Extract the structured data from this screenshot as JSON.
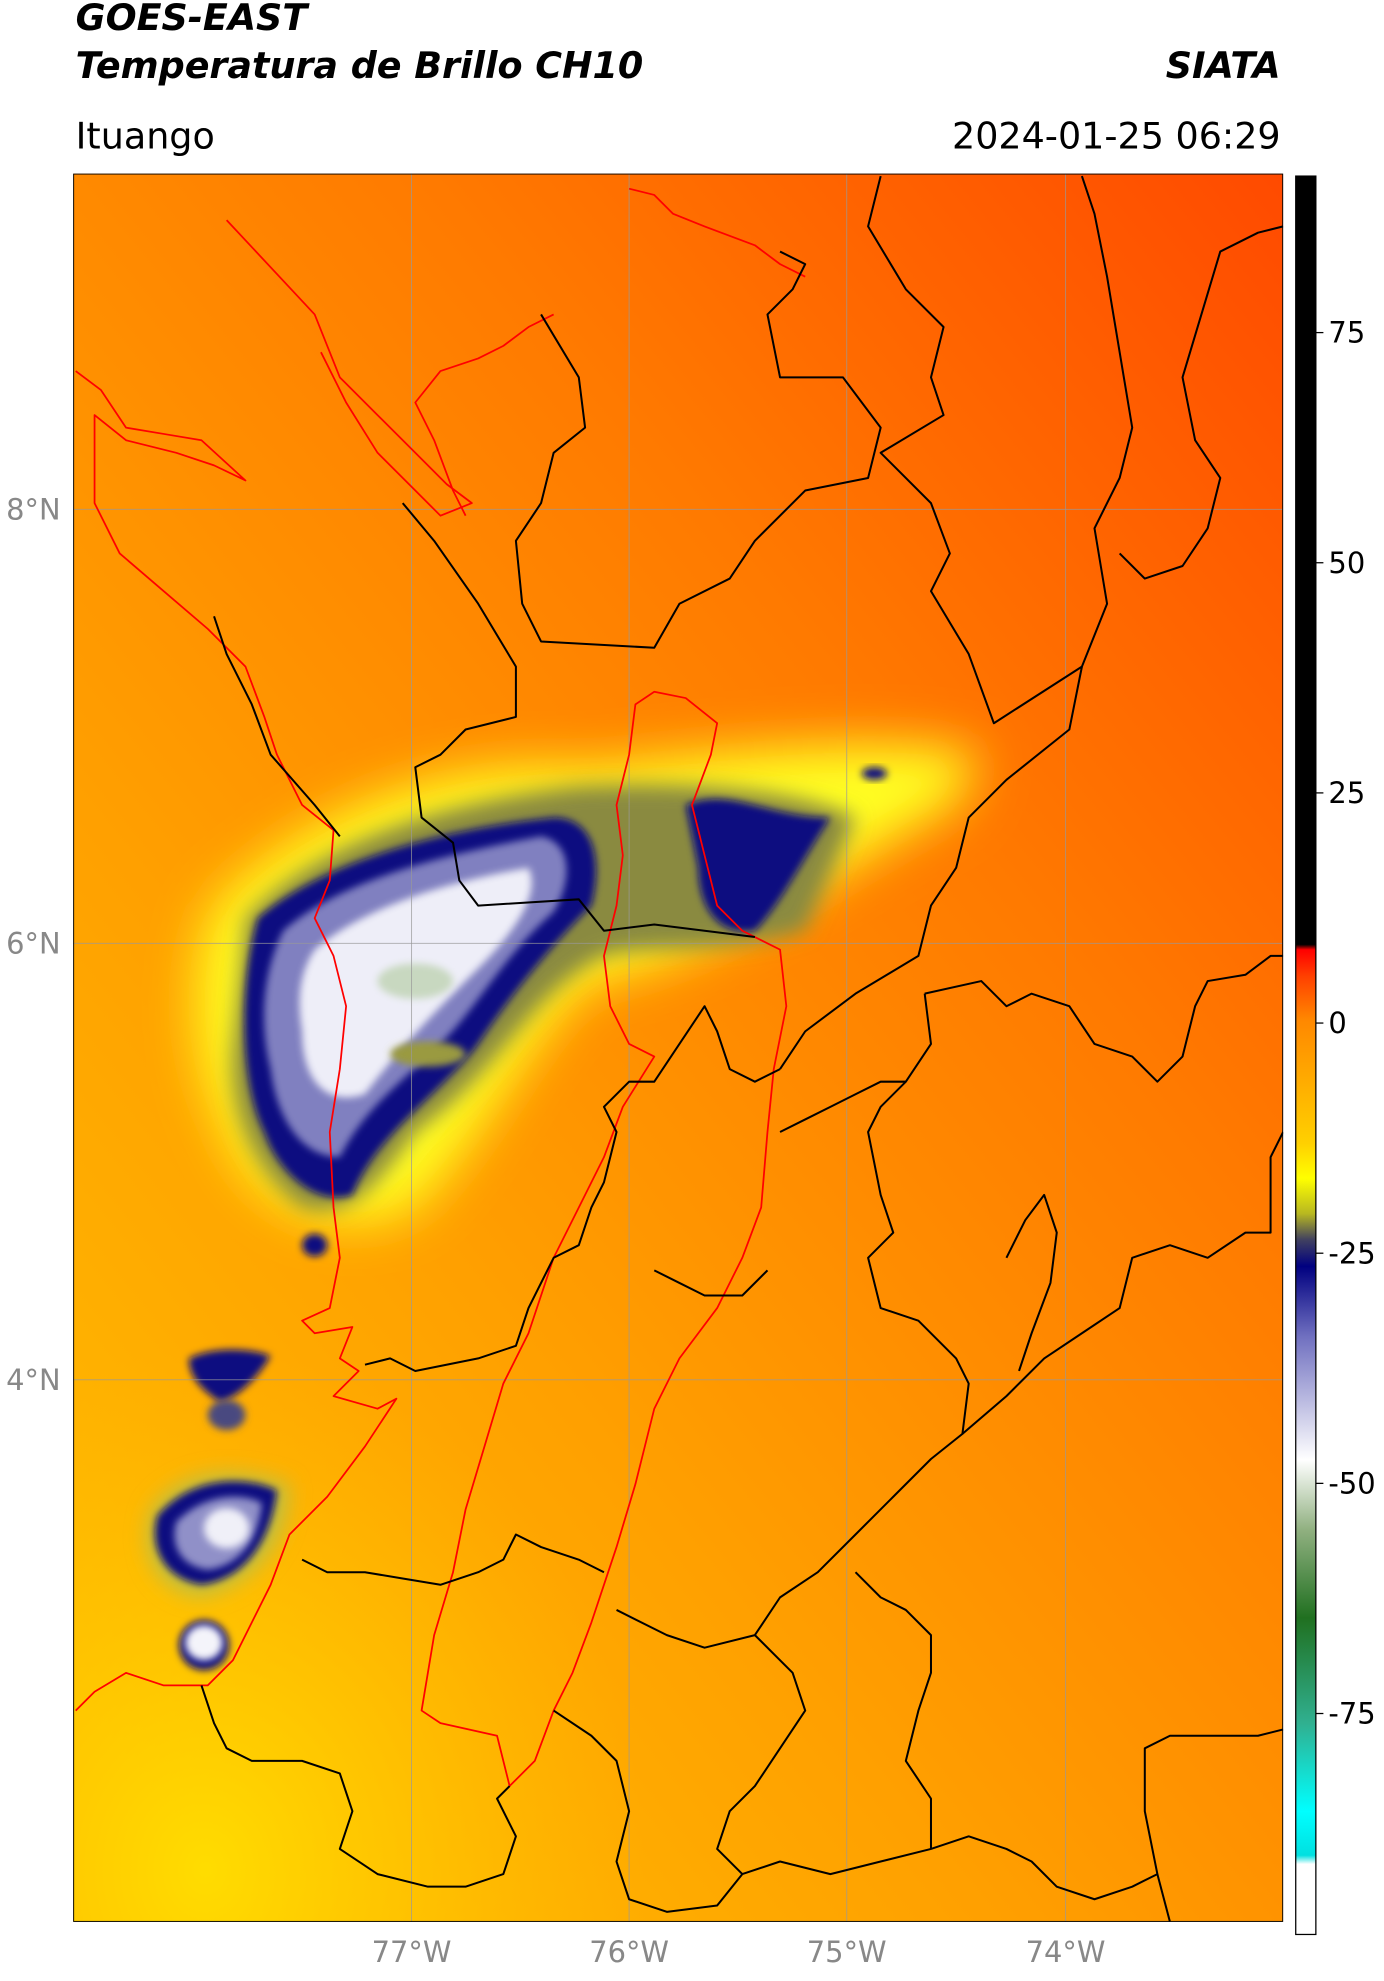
{
  "header": {
    "satellite": "GOES-EAST",
    "product": "Temperatura de Brillo CH10",
    "brand": "SIATA",
    "location": "Ituango",
    "datetime": "2024-01-25 06:29"
  },
  "map": {
    "lat_labels": [
      "8°N",
      "6°N",
      "4°N"
    ],
    "lon_labels": [
      "77°W",
      "76°W",
      "75°W",
      "74°W"
    ]
  },
  "colorbar": {
    "range": [
      -99,
      92
    ],
    "ticks": [
      75,
      50,
      25,
      0,
      -25,
      -50,
      -75
    ]
  }
}
